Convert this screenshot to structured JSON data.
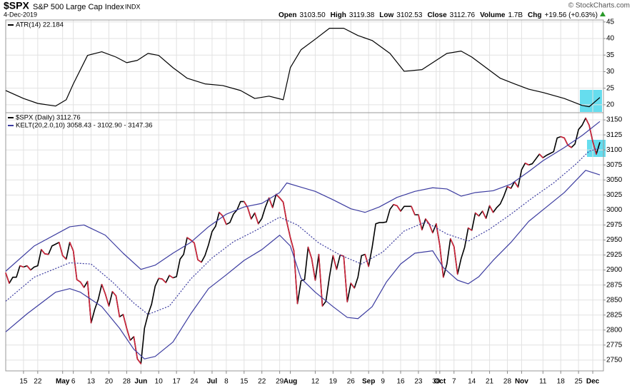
{
  "header": {
    "symbol": "$SPX",
    "name": "S&P 500 Large Cap Index",
    "exchange": "INDX",
    "date": "4-Dec-2019",
    "copyright": "© StockCharts.com",
    "quote": [
      {
        "label": "Open",
        "value": "3103.50"
      },
      {
        "label": "High",
        "value": "3119.38"
      },
      {
        "label": "Low",
        "value": "3102.53"
      },
      {
        "label": "Close",
        "value": "3112.76"
      },
      {
        "label": "Volume",
        "value": "1.7B"
      },
      {
        "label": "Chg",
        "value": "+19.56 (+0.63%)"
      }
    ]
  },
  "chart_data": [
    {
      "type": "line",
      "grid": true,
      "ylim": [
        17.6,
        45.6
      ],
      "yticks": [
        20,
        25,
        30,
        35,
        40,
        45
      ],
      "series": [
        {
          "name": "ATR(14) 22.184",
          "color": "#000000",
          "x": [
            0,
            5,
            9,
            14,
            17,
            19,
            23,
            27,
            31,
            34,
            37,
            40,
            43,
            47,
            51,
            56,
            61,
            66,
            70,
            74,
            78,
            80,
            83,
            87,
            91,
            95,
            99,
            103,
            108,
            112,
            117,
            121,
            124,
            128,
            131,
            135,
            139,
            143,
            147,
            151,
            157,
            162,
            164,
            167
          ],
          "values": [
            24.3,
            21.9,
            20.4,
            19.6,
            21.5,
            26.3,
            34.9,
            36,
            34.4,
            32.7,
            33.4,
            35.5,
            34.9,
            31.2,
            28,
            26.3,
            25.8,
            24.3,
            21.9,
            22.6,
            21.5,
            31.2,
            36.6,
            39.8,
            43.1,
            43.1,
            40.9,
            39.4,
            35.5,
            30.1,
            30.6,
            33.4,
            35.5,
            36.2,
            34.4,
            31.2,
            28,
            26.3,
            24.7,
            23.7,
            21.9,
            19.8,
            19.4,
            22.184
          ]
        }
      ]
    },
    {
      "type": "line",
      "grid": true,
      "ylim": [
        2732,
        3162
      ],
      "yticks": [
        2750,
        2775,
        2800,
        2825,
        2850,
        2875,
        2900,
        2925,
        2950,
        2975,
        3000,
        3025,
        3050,
        3075,
        3100,
        3125,
        3150
      ],
      "xlim": [
        0,
        168
      ],
      "xticks": [
        {
          "value": 5,
          "label": "15"
        },
        {
          "value": 9,
          "label": "22"
        },
        {
          "value": 16,
          "label": "May"
        },
        {
          "value": 19,
          "label": "6"
        },
        {
          "value": 24,
          "label": "13"
        },
        {
          "value": 29,
          "label": "20"
        },
        {
          "value": 34,
          "label": "28"
        },
        {
          "value": 38,
          "label": "Jun"
        },
        {
          "value": 43,
          "label": "10"
        },
        {
          "value": 48,
          "label": "17"
        },
        {
          "value": 53,
          "label": "24"
        },
        {
          "value": 58,
          "label": "Jul"
        },
        {
          "value": 62,
          "label": "8"
        },
        {
          "value": 67,
          "label": "15"
        },
        {
          "value": 72,
          "label": "22"
        },
        {
          "value": 77,
          "label": "29"
        },
        {
          "value": 80,
          "label": "Aug"
        },
        {
          "value": 87,
          "label": "12"
        },
        {
          "value": 92,
          "label": "19"
        },
        {
          "value": 97,
          "label": "26"
        },
        {
          "value": 102,
          "label": "Sep"
        },
        {
          "value": 106,
          "label": "9"
        },
        {
          "value": 111,
          "label": "16"
        },
        {
          "value": 116,
          "label": "23"
        },
        {
          "value": 121,
          "label": "30"
        },
        {
          "value": 122,
          "label": "Oct"
        },
        {
          "value": 126,
          "label": "7"
        },
        {
          "value": 131,
          "label": "14"
        },
        {
          "value": 136,
          "label": "21"
        },
        {
          "value": 141,
          "label": "28"
        },
        {
          "value": 145,
          "label": "Nov"
        },
        {
          "value": 151,
          "label": "11"
        },
        {
          "value": 156,
          "label": "18"
        },
        {
          "value": 161,
          "label": "25"
        },
        {
          "value": 165,
          "label": "Dec"
        }
      ],
      "series": [
        {
          "name": "$SPX (Daily) 3112.76",
          "color": "#000000",
          "down_color": "#d0243a",
          "x": [
            0,
            1,
            2,
            3,
            4,
            5,
            6,
            7,
            8,
            9,
            10,
            11,
            12,
            13,
            14,
            15,
            16,
            17,
            18,
            19,
            20,
            21,
            22,
            23,
            24,
            25,
            26,
            27,
            28,
            29,
            30,
            31,
            32,
            33,
            34,
            35,
            36,
            37,
            38,
            39,
            40,
            41,
            42,
            43,
            44,
            45,
            46,
            47,
            48,
            49,
            50,
            51,
            52,
            53,
            54,
            55,
            56,
            57,
            58,
            59,
            60,
            61,
            62,
            63,
            64,
            65,
            66,
            67,
            68,
            69,
            70,
            71,
            72,
            73,
            74,
            75,
            76,
            77,
            78,
            79,
            80,
            81,
            82,
            83,
            84,
            85,
            86,
            87,
            88,
            89,
            90,
            91,
            92,
            93,
            94,
            95,
            96,
            97,
            98,
            99,
            100,
            101,
            102,
            103,
            104,
            105,
            106,
            107,
            108,
            109,
            110,
            111,
            112,
            113,
            114,
            115,
            116,
            117,
            118,
            119,
            120,
            121,
            122,
            123,
            124,
            125,
            126,
            127,
            128,
            129,
            130,
            131,
            132,
            133,
            134,
            135,
            136,
            137,
            138,
            139,
            140,
            141,
            142,
            143,
            144,
            145,
            146,
            147,
            148,
            149,
            150,
            151,
            152,
            153,
            154,
            155,
            156,
            157,
            158,
            159,
            160,
            161,
            162,
            163,
            164,
            165,
            166,
            167
          ],
          "values": [
            2895,
            2878,
            2888,
            2888,
            2907,
            2905,
            2907,
            2900,
            2905,
            2907,
            2934,
            2927,
            2926,
            2940,
            2943,
            2946,
            2924,
            2918,
            2946,
            2932,
            2884,
            2880,
            2871,
            2881,
            2812,
            2834,
            2851,
            2876,
            2860,
            2840,
            2864,
            2857,
            2822,
            2826,
            2803,
            2783,
            2789,
            2752,
            2744,
            2803,
            2826,
            2843,
            2873,
            2886,
            2885,
            2879,
            2891,
            2887,
            2889,
            2918,
            2926,
            2954,
            2950,
            2945,
            2917,
            2913,
            2924,
            2942,
            2964,
            2973,
            2996,
            2990,
            2976,
            2979,
            2993,
            3000,
            3014,
            3014,
            3004,
            2985,
            2995,
            2977,
            2986,
            3005,
            3020,
            3004,
            3026,
            3020,
            3013,
            2980,
            2954,
            2932,
            2844,
            2882,
            2884,
            2938,
            2919,
            2883,
            2926,
            2840,
            2848,
            2889,
            2924,
            2901,
            2925,
            2923,
            2847,
            2878,
            2870,
            2888,
            2924,
            2926,
            2906,
            2938,
            2977,
            2979,
            2979,
            2980,
            3001,
            3009,
            3007,
            2998,
            3006,
            3006,
            3006,
            2992,
            2992,
            2967,
            2985,
            2977,
            2962,
            2977,
            2941,
            2888,
            2910,
            2952,
            2939,
            2893,
            2919,
            2938,
            2970,
            2966,
            2995,
            2990,
            2998,
            2986,
            3007,
            2996,
            3004,
            3010,
            3023,
            3039,
            3036,
            3047,
            3038,
            3067,
            3078,
            3075,
            3077,
            3085,
            3093,
            3087,
            3091,
            3094,
            3097,
            3120,
            3122,
            3120,
            3108,
            3104,
            3110,
            3134,
            3141,
            3153,
            3141,
            3114,
            3093,
            3112.76
          ]
        },
        {
          "name": "KELT(20,2.0,10) 3058.43 - 3102.90 - 3147.36",
          "color": "#3c3ca0",
          "x": [
            0,
            8,
            18,
            22,
            28,
            33,
            38,
            42,
            47,
            52,
            57,
            62,
            67,
            72,
            77,
            79,
            83,
            87,
            92,
            97,
            101,
            105,
            110,
            115,
            120,
            124,
            128,
            132,
            137,
            142,
            147,
            151,
            157,
            162,
            167
          ],
          "values": [
            2898,
            2940,
            2972,
            2975,
            2958,
            2928,
            2901,
            2908,
            2928,
            2946,
            2972,
            2993,
            3005,
            3011,
            3029,
            3045,
            3038,
            3031,
            3017,
            3002,
            2996,
            3005,
            3021,
            3031,
            3037,
            3035,
            3023,
            3029,
            3032,
            3043,
            3064,
            3082,
            3104,
            3124,
            3147.36
          ]
        },
        {
          "color": "#3c3ca0",
          "dash": "dotted",
          "x": [
            0,
            8,
            18,
            24,
            30,
            36,
            40,
            46,
            52,
            58,
            64,
            70,
            77,
            82,
            88,
            94,
            100,
            106,
            112,
            118,
            124,
            130,
            136,
            142,
            148,
            154,
            160,
            164,
            167
          ],
          "values": [
            2848,
            2888,
            2912,
            2910,
            2880,
            2845,
            2826,
            2840,
            2885,
            2920,
            2947,
            2965,
            2988,
            2975,
            2945,
            2925,
            2910,
            2930,
            2965,
            2980,
            2960,
            2948,
            2968,
            2993,
            3020,
            3045,
            3075,
            3098,
            3102.9
          ]
        },
        {
          "color": "#3c3ca0",
          "x": [
            0,
            6,
            14,
            18,
            21,
            27,
            32,
            36,
            39,
            42,
            47,
            52,
            57,
            62,
            67,
            72,
            77,
            80,
            83,
            87,
            92,
            96,
            99,
            103,
            107,
            111,
            115,
            120,
            123,
            127,
            130,
            133,
            137,
            142,
            147,
            152,
            157,
            163,
            167
          ],
          "values": [
            2797,
            2827,
            2863,
            2869,
            2863,
            2839,
            2803,
            2768,
            2752,
            2756,
            2780,
            2827,
            2869,
            2892,
            2916,
            2934,
            2958,
            2940,
            2886,
            2863,
            2839,
            2821,
            2819,
            2839,
            2880,
            2910,
            2928,
            2932,
            2904,
            2883,
            2877,
            2889,
            2916,
            2946,
            2981,
            3005,
            3029,
            3066,
            3058.43
          ]
        }
      ]
    }
  ]
}
